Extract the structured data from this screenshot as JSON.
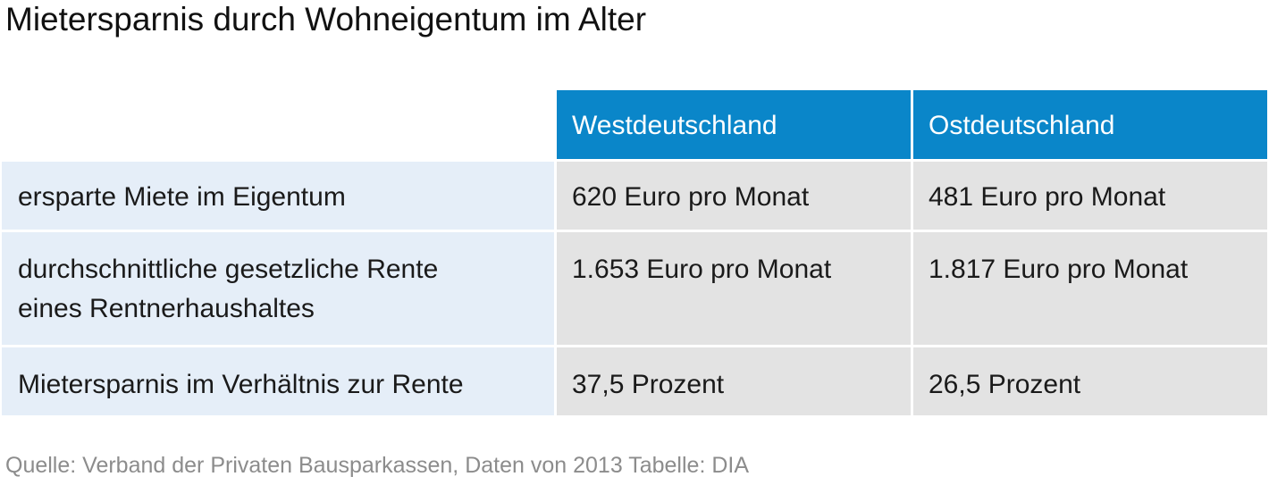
{
  "title": "Mietersparnis durch Wohneigentum im Alter",
  "columns": [
    "",
    "Westdeutschland",
    "Ostdeutschland"
  ],
  "rows": [
    {
      "label": [
        "ersparte Miete im Eigentum"
      ],
      "west": "620 Euro pro Monat",
      "east": "481 Euro pro Monat"
    },
    {
      "label": [
        "durchschnittliche gesetzliche Rente",
        "eines Rentnerhaushaltes"
      ],
      "west": "1.653 Euro pro Monat",
      "east": "1.817 Euro pro Monat"
    },
    {
      "label": [
        "Mietersparnis im Verhältnis zur Rente"
      ],
      "west": "37,5 Prozent",
      "east": "26,5 Prozent"
    }
  ],
  "source": "Quelle: Verband der Privaten Bausparkassen, Daten von 2013  Tabelle: DIA",
  "colors": {
    "header_blue": "#0a86c9",
    "label_cell_bg": "#e5eef8",
    "value_cell_bg": "#e3e3e3",
    "source_text": "#8c8c8c"
  }
}
